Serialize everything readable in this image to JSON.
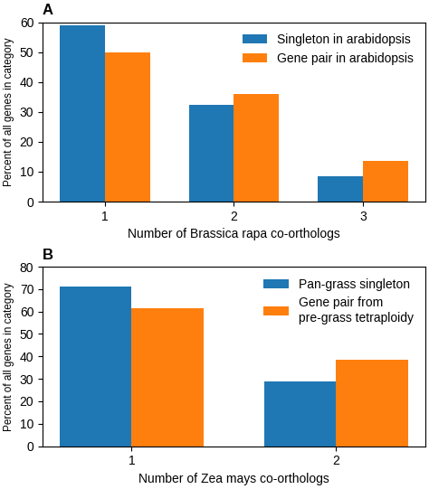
{
  "chart_data": [
    {
      "type": "bar",
      "title": "A",
      "categories": [
        "1",
        "2",
        "3"
      ],
      "series": [
        {
          "name": "Singleton in arabidopsis",
          "values": [
            59,
            32.5,
            8.5
          ]
        },
        {
          "name": "Gene pair in arabidopsis",
          "values": [
            50,
            36,
            13.5
          ]
        }
      ],
      "x_label": "Number of Brassica rapa co-orthologs",
      "y_label": "Percent of all genes in category",
      "ylim": [
        0,
        60
      ],
      "yticks": [
        0,
        10,
        20,
        30,
        40,
        50,
        60
      ],
      "legend": "upper right"
    },
    {
      "type": "bar",
      "title": "B",
      "categories": [
        "1",
        "2"
      ],
      "series": [
        {
          "name": "Pan-grass singleton",
          "values": [
            71,
            29
          ]
        },
        {
          "name": "Gene pair from\npre-grass tetraploidy",
          "values": [
            61.5,
            38.5
          ]
        }
      ],
      "x_label": "Number of Zea mays co-orthologs",
      "y_label": "Percent of all genes in category",
      "ylim": [
        0,
        80
      ],
      "yticks": [
        0,
        10,
        20,
        30,
        40,
        50,
        60,
        70,
        80
      ],
      "legend": "upper right"
    }
  ]
}
